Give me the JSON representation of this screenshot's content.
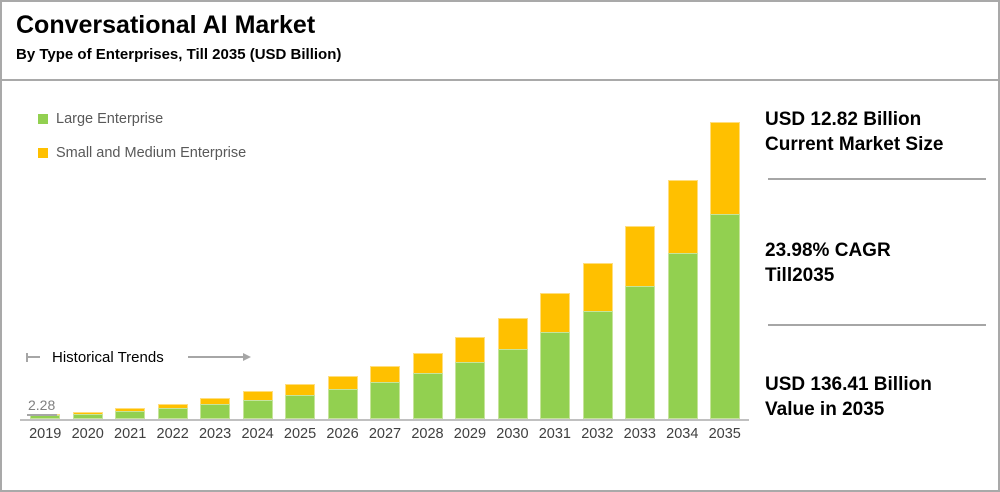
{
  "header": {
    "title": "Conversational AI Market",
    "subtitle": "By Type of Enterprises, Till 2035 (USD Billion)"
  },
  "legend": {
    "items": [
      {
        "label": "Large Enterprise",
        "color": "#92D050"
      },
      {
        "label": "Small and Medium Enterprise",
        "color": "#FFC000"
      }
    ]
  },
  "annotation": {
    "historical_trends_label": "Historical Trends"
  },
  "first_point_label": "2.28",
  "stats": [
    {
      "line1": "USD 12.82 Billion",
      "line2": "Current Market Size"
    },
    {
      "line1": "23.98% CAGR",
      "line2": "Till2035"
    },
    {
      "line1": "USD 136.41 Billion",
      "line2": "Value in 2035"
    }
  ],
  "chart_data": {
    "type": "bar",
    "stacked": true,
    "title": "Conversational AI Market",
    "subtitle": "By Type of Enterprises, Till 2035 (USD Billion)",
    "unit": "USD Billion",
    "categories": [
      "2019",
      "2020",
      "2021",
      "2022",
      "2023",
      "2024",
      "2025",
      "2026",
      "2027",
      "2028",
      "2029",
      "2030",
      "2031",
      "2032",
      "2033",
      "2034",
      "2035"
    ],
    "series": [
      {
        "name": "Large Enterprise",
        "color": "#92D050",
        "border_color": "#c6e49b",
        "values": [
          1.7,
          2.4,
          3.5,
          4.9,
          6.7,
          8.9,
          11.0,
          13.7,
          17.0,
          21.0,
          26.0,
          32.4,
          39.9,
          49.6,
          61.3,
          76.2,
          94.2
        ]
      },
      {
        "name": "Small and Medium Enterprise",
        "color": "#FFC000",
        "border_color": "#ffde7e",
        "values": [
          0.58,
          1.0,
          1.5,
          2.1,
          2.9,
          3.92,
          4.9,
          6.0,
          7.4,
          9.3,
          11.6,
          14.2,
          17.8,
          22.0,
          27.4,
          33.8,
          42.21
        ]
      }
    ],
    "totals": [
      2.28,
      3.4,
      5.0,
      7.0,
      9.6,
      12.82,
      15.9,
      19.7,
      24.4,
      30.3,
      37.6,
      46.6,
      57.7,
      71.6,
      88.7,
      110.0,
      136.41
    ],
    "data_labels": [
      {
        "category": "2019",
        "text": "2.28"
      }
    ],
    "ylim": [
      0,
      140
    ],
    "grid": false,
    "legend_position": "top-left",
    "annotations": [
      "Historical Trends arrow over 2019-2024 period"
    ],
    "key_callouts": {
      "current_market_size_usd_billion": 12.82,
      "cagr_percent_till_2035": 23.98,
      "value_2035_usd_billion": 136.41
    }
  }
}
